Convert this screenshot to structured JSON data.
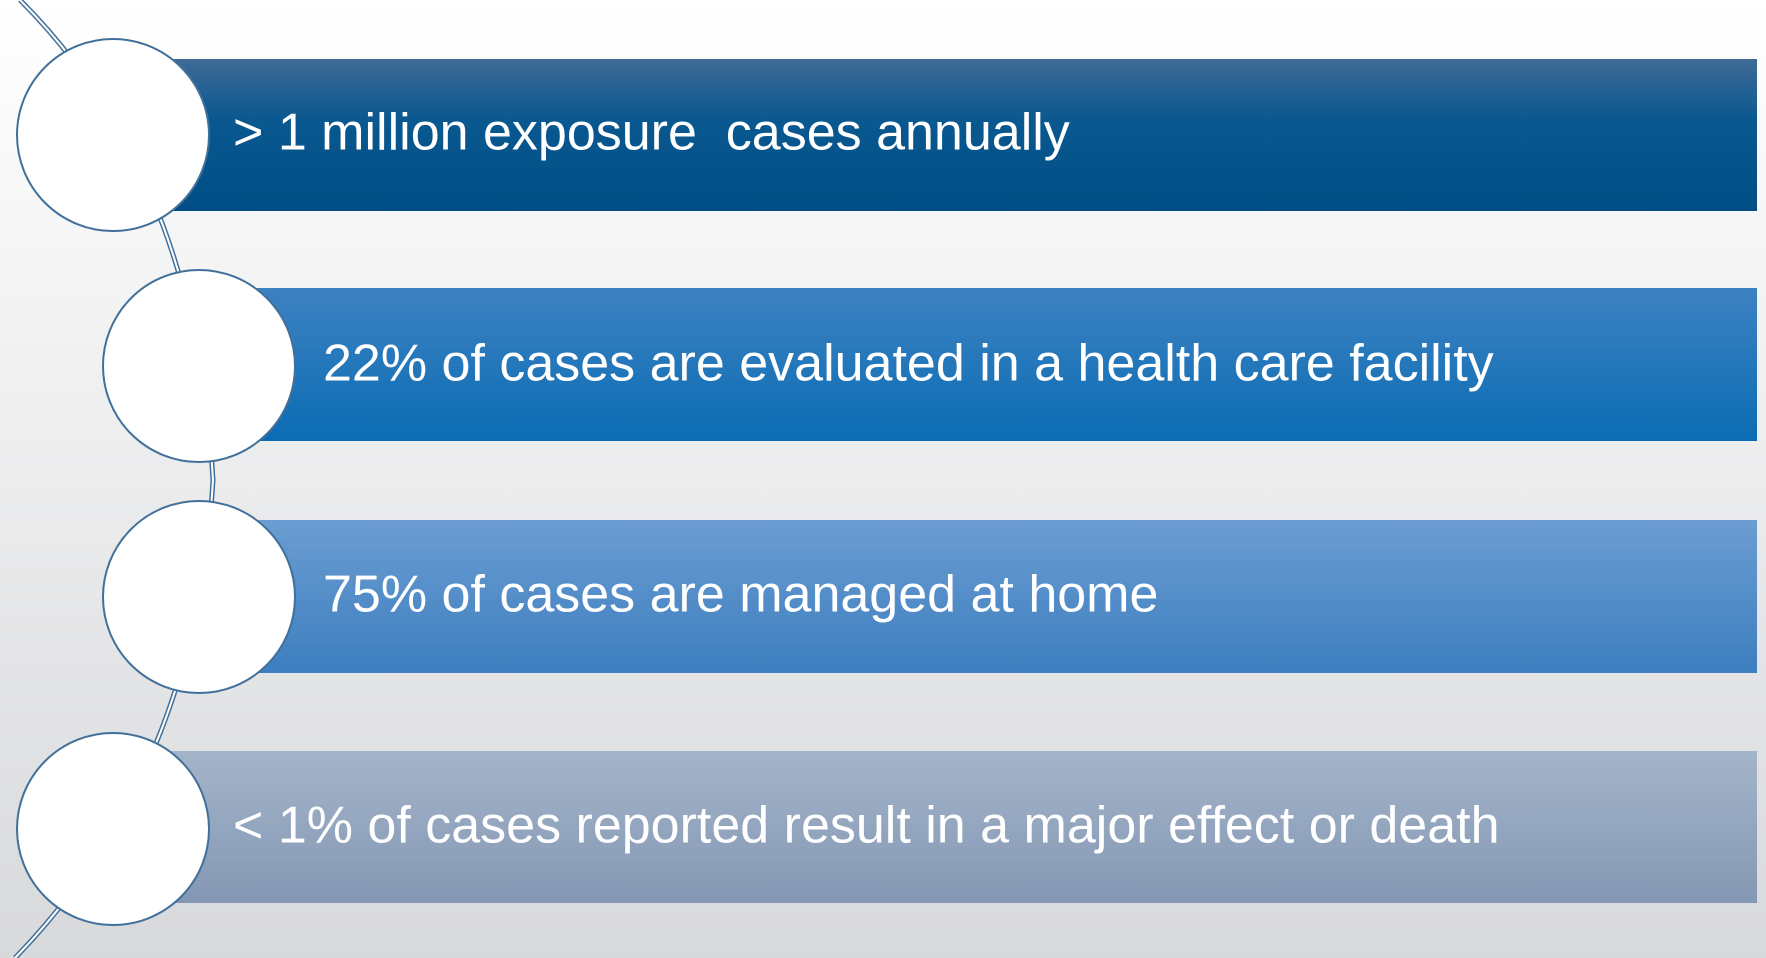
{
  "items": [
    {
      "text": "> 1 million exposure  cases annually"
    },
    {
      "text": "22% of cases are evaluated in a health care facility"
    },
    {
      "text": "75% of cases are managed at home"
    },
    {
      "text": "< 1% of cases reported result in a major effect or death"
    }
  ]
}
